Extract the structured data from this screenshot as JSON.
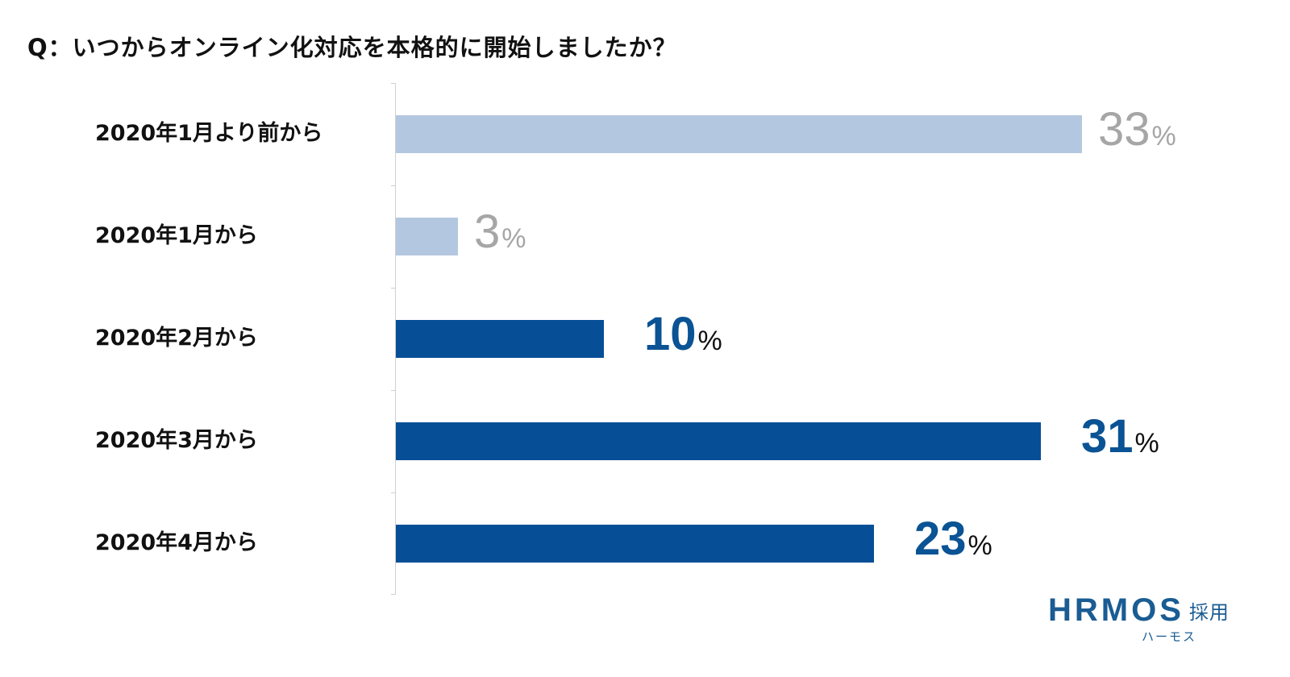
{
  "title": "Q：いつからオンライン化対応を本格的に開始しましたか？",
  "colors": {
    "bar_light": "#b4c7e0",
    "bar_dark": "#064f96",
    "value_light": "#a6a6a6",
    "value_dark": "#0a5394",
    "axis": "#d0d0d0"
  },
  "rows": [
    {
      "label": "2020年1月より前から",
      "value": "33",
      "unit": "%",
      "style": "light"
    },
    {
      "label": "2020年1月から",
      "value": "3",
      "unit": "%",
      "style": "light"
    },
    {
      "label": "2020年2月から",
      "value": "10",
      "unit": "%",
      "style": "dark"
    },
    {
      "label": "2020年3月から",
      "value": "31",
      "unit": "%",
      "style": "dark"
    },
    {
      "label": "2020年4月から",
      "value": "23",
      "unit": "%",
      "style": "dark"
    }
  ],
  "logo": {
    "main": "HRMOS",
    "suffix": "採用",
    "sub": "ハーモス"
  },
  "chart_data": {
    "type": "bar",
    "orientation": "horizontal",
    "title": "Q：いつからオンライン化対応を本格的に開始しましたか？",
    "categories": [
      "2020年1月より前から",
      "2020年1月から",
      "2020年2月から",
      "2020年3月から",
      "2020年4月から"
    ],
    "values": [
      33,
      3,
      10,
      31,
      23
    ],
    "unit": "%",
    "xlabel": "",
    "ylabel": "",
    "grid": false,
    "legend": null,
    "bar_colors": [
      "#b4c7e0",
      "#b4c7e0",
      "#064f96",
      "#064f96",
      "#064f96"
    ],
    "data_labels": [
      "33%",
      "3%",
      "10%",
      "31%",
      "23%"
    ]
  }
}
